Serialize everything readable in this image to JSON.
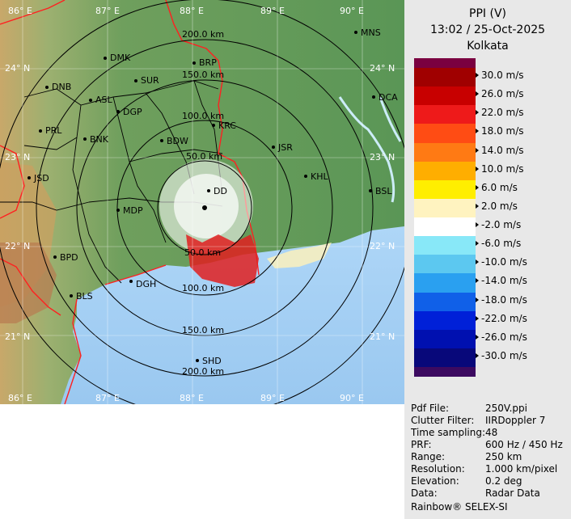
{
  "header": {
    "product": "PPI (V)",
    "datetime": "13:02 / 25-Oct-2025",
    "station": "Kolkata"
  },
  "legend": {
    "entries": [
      {
        "label": "30.0 m/s",
        "color": "#a00000"
      },
      {
        "label": "26.0 m/s",
        "color": "#c80000"
      },
      {
        "label": "22.0 m/s",
        "color": "#ee1a1a"
      },
      {
        "label": "18.0 m/s",
        "color": "#ff4c14"
      },
      {
        "label": "14.0 m/s",
        "color": "#ff7a14"
      },
      {
        "label": "10.0 m/s",
        "color": "#ffae00"
      },
      {
        "label": "6.0 m/s",
        "color": "#ffee00"
      },
      {
        "label": "2.0 m/s",
        "color": "#fff3c0"
      },
      {
        "label": "-2.0 m/s",
        "color": "#ffffff"
      },
      {
        "label": "-6.0 m/s",
        "color": "#88e8f8"
      },
      {
        "label": "-10.0 m/s",
        "color": "#5cc8f0"
      },
      {
        "label": "-14.0 m/s",
        "color": "#2aa0f0"
      },
      {
        "label": "-18.0 m/s",
        "color": "#1060e8"
      },
      {
        "label": "-22.0 m/s",
        "color": "#0020d8"
      },
      {
        "label": "-26.0 m/s",
        "color": "#0010b0"
      },
      {
        "label": "-30.0 m/s",
        "color": "#08087a"
      }
    ],
    "top_color": "#7a0040",
    "bottom_color": "#3c0a60"
  },
  "info": [
    {
      "key": "Pdf File:",
      "value": "250V.ppi"
    },
    {
      "key": "Clutter Filter:",
      "value": "IIRDoppler 7"
    },
    {
      "key": "Time sampling:",
      "value": "48"
    },
    {
      "key": "PRF:",
      "value": "600 Hz / 450 Hz"
    },
    {
      "key": "Range:",
      "value": "250 km"
    },
    {
      "key": "Resolution:",
      "value": "1.000 km/pixel"
    },
    {
      "key": "Elevation:",
      "value": "0.2 deg"
    },
    {
      "key": "Data:",
      "value": "Radar Data"
    }
  ],
  "brand": "Rainbow® SELEX-SI",
  "map": {
    "longitudes": [
      "86° E",
      "87° E",
      "88° E",
      "89° E",
      "90° E"
    ],
    "latitudes": [
      "24° N",
      "23° N",
      "22° N",
      "21° N"
    ],
    "range_rings": [
      "50.0 km",
      "100.0 km",
      "150.0 km",
      "200.0 km"
    ],
    "places": [
      "MNS",
      "DMK",
      "BRP",
      "DNB",
      "SUR",
      "ASL",
      "DCA",
      "DGP",
      "KRC",
      "PRL",
      "BNK",
      "BDW",
      "JSR",
      "JSD",
      "KHL",
      "BSL",
      "MDP",
      "DD",
      "BPD",
      "DGH",
      "BLS",
      "SHD"
    ],
    "colors": {
      "land": "#5f9a5b",
      "sea": "#b0d8f8",
      "coast": "#ff2020",
      "boundary": "#000000",
      "ring": "#000000"
    }
  }
}
